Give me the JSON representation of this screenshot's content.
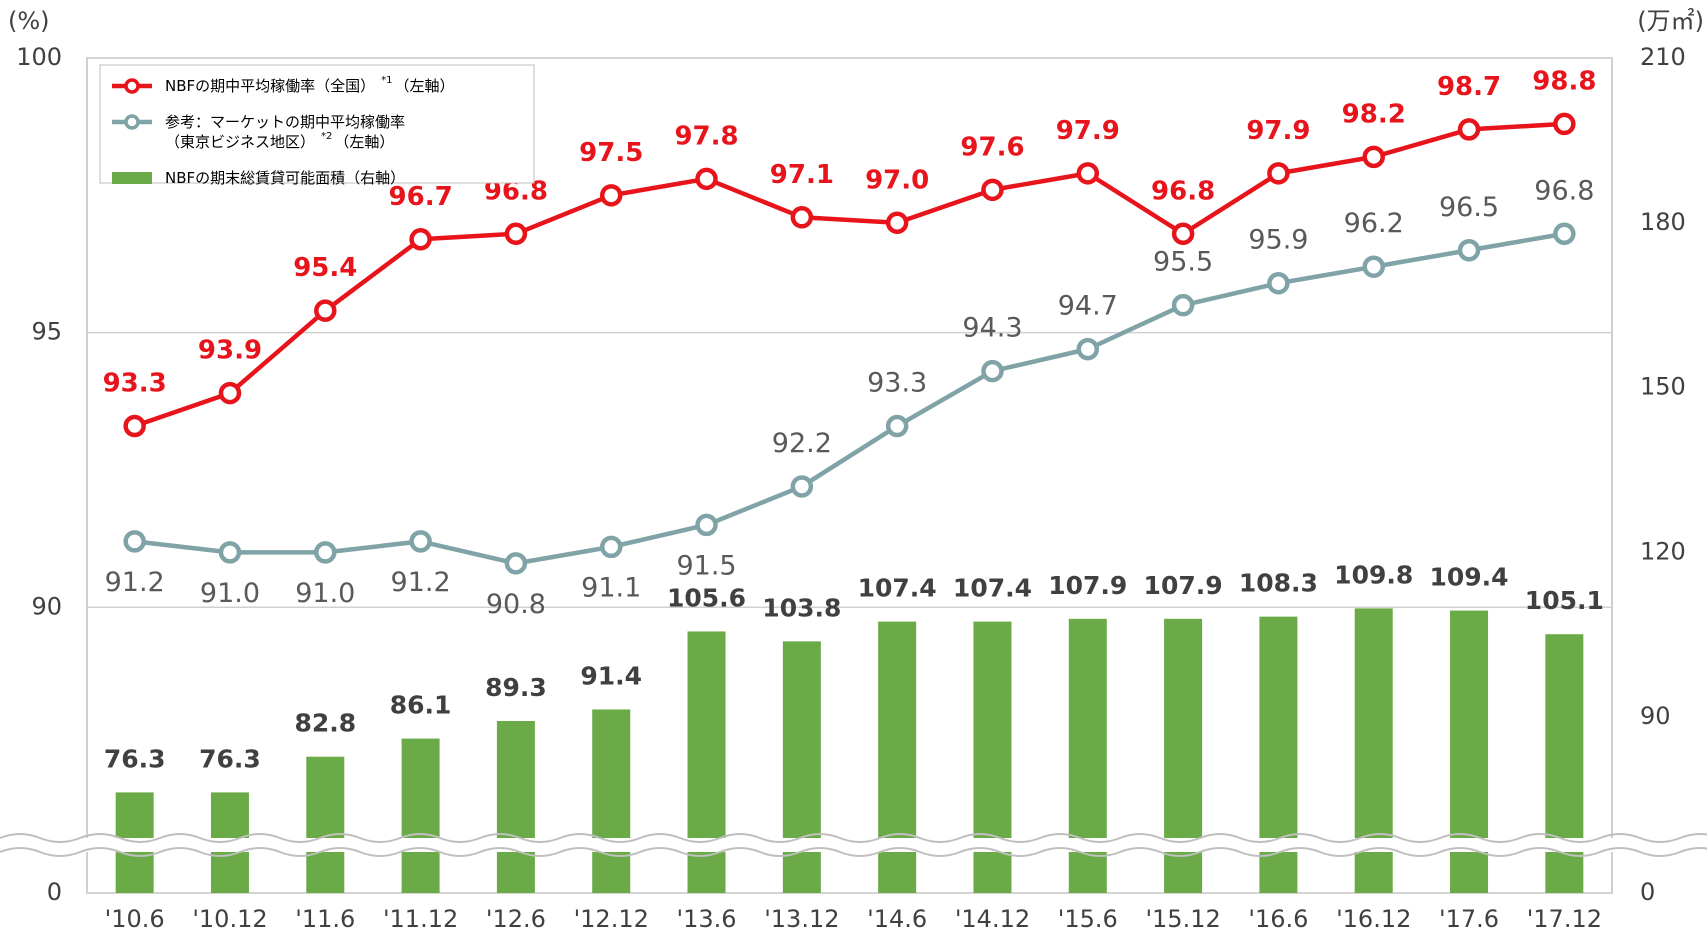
{
  "chart_data": {
    "type": "bar-line",
    "y_unit": "(%)",
    "y2_unit": "(万㎡)",
    "categories": [
      "'10.6",
      "'10.12",
      "'11.6",
      "'11.12",
      "'12.6",
      "'12.12",
      "'13.6",
      "'13.12",
      "'14.6",
      "'14.12",
      "'15.6",
      "'15.12",
      "'16.6",
      "'16.12",
      "'17.6",
      "'17.12"
    ],
    "ylim": [
      0,
      100
    ],
    "y_break": [
      0,
      85.8
    ],
    "yticks": [
      0,
      90,
      95,
      100
    ],
    "y2lim": [
      0,
      210
    ],
    "y2_break": [
      0,
      68
    ],
    "y2ticks": [
      0,
      90,
      120,
      150,
      180,
      210
    ],
    "grid": true,
    "legend": "upper left",
    "series": [
      {
        "name": "NBFの期中平均稼働率（全国）",
        "note": "*1",
        "axis_note": "（左軸）",
        "type": "line",
        "axis": "y",
        "color": "#e8141c",
        "values": [
          93.3,
          93.9,
          95.4,
          96.7,
          96.8,
          97.5,
          97.8,
          97.1,
          97.0,
          97.6,
          97.9,
          96.8,
          97.9,
          98.2,
          98.7,
          98.8
        ],
        "value_labels": [
          "93.3",
          "93.9",
          "95.4",
          "96.7",
          "96.8",
          "97.5",
          "97.8",
          "97.1",
          "97.0",
          "97.6",
          "97.9",
          "96.8",
          "97.9",
          "98.2",
          "98.7",
          "98.8"
        ]
      },
      {
        "name": "参考：マーケットの期中平均稼働率",
        "name_line2": "（東京ビジネス地区）",
        "note": "*2",
        "axis_note": "（左軸）",
        "type": "line",
        "axis": "y",
        "color": "#7fa3a6",
        "values": [
          91.2,
          91.0,
          91.0,
          91.2,
          90.8,
          91.1,
          91.5,
          92.2,
          93.3,
          94.3,
          94.7,
          95.5,
          95.9,
          96.2,
          96.5,
          96.8
        ],
        "value_labels": [
          "91.2",
          "91.0",
          "91.0",
          "91.2",
          "90.8",
          "91.1",
          "91.5",
          "92.2",
          "93.3",
          "94.3",
          "94.7",
          "95.5",
          "95.9",
          "96.2",
          "96.5",
          "96.8"
        ]
      },
      {
        "name": "NBFの期末総賃貸可能面積（右軸）",
        "type": "bar",
        "axis": "y2",
        "color": "#6aaa47",
        "values": [
          76.3,
          76.3,
          82.8,
          86.1,
          89.3,
          91.4,
          105.6,
          103.8,
          107.4,
          107.4,
          107.9,
          107.9,
          108.3,
          109.8,
          109.4,
          105.1
        ],
        "value_labels": [
          "76.3",
          "76.3",
          "82.8",
          "86.1",
          "89.3",
          "91.4",
          "105.6",
          "103.8",
          "107.4",
          "107.4",
          "107.9",
          "107.9",
          "108.3",
          "109.8",
          "109.4",
          "105.1"
        ]
      }
    ]
  }
}
